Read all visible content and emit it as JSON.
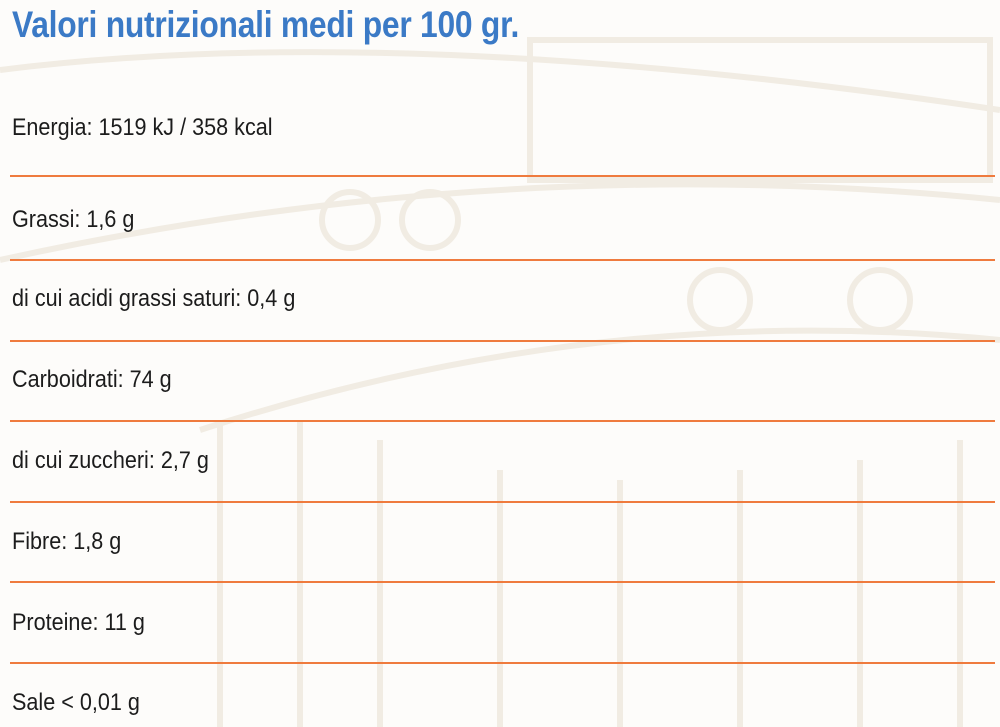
{
  "title": "Valori nutrizionali medi per 100 gr.",
  "colors": {
    "title": "#3b7ac6",
    "divider": "#ef7b3e",
    "text": "#1c1c1c"
  },
  "items": [
    {
      "label": "Energia: 1519 kJ / 358 kcal"
    },
    {
      "label": "Grassi: 1,6 g"
    },
    {
      "label": "di cui acidi grassi saturi: 0,4 g"
    },
    {
      "label": "Carboidrati: 74 g"
    },
    {
      "label": "di cui zuccheri: 2,7 g"
    },
    {
      "label": "Fibre: 1,8 g"
    },
    {
      "label": "Proteine: 11 g"
    },
    {
      "label": "Sale < 0,01 g"
    }
  ]
}
